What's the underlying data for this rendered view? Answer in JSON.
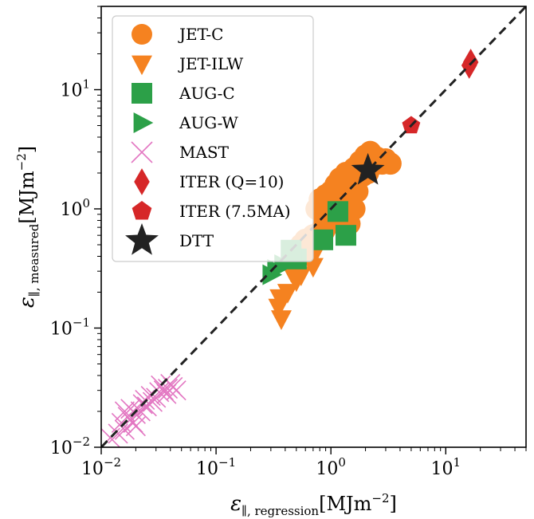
{
  "chart_data": {
    "type": "scatter",
    "xscale": "log",
    "yscale": "log",
    "xlim": [
      0.01,
      50
    ],
    "ylim": [
      0.01,
      50
    ],
    "grid": false,
    "legend_position": "top-left",
    "xlabel": "ε∥, regression[MJm−2]",
    "ylabel": "ε∥, measured[MJm−2]",
    "xlabel_main": "ε",
    "xlabel_sub": "∥, regression",
    "xlabel_unit": "[MJm",
    "xlabel_exp": "−2",
    "xlabel_close": "]",
    "ylabel_main": "ε",
    "ylabel_sub": "∥, measured",
    "ylabel_unit": "[MJm",
    "ylabel_exp": "−2",
    "ylabel_close": "]",
    "x_ticks": [
      {
        "value": 0.01,
        "base": "10",
        "exp": "−2"
      },
      {
        "value": 0.1,
        "base": "10",
        "exp": "−1"
      },
      {
        "value": 1,
        "base": "10",
        "exp": "0"
      },
      {
        "value": 10,
        "base": "10",
        "exp": "1"
      }
    ],
    "y_ticks": [
      {
        "value": 0.01,
        "base": "10",
        "exp": "−2"
      },
      {
        "value": 0.1,
        "base": "10",
        "exp": "−1"
      },
      {
        "value": 1,
        "base": "10",
        "exp": "0"
      },
      {
        "value": 10,
        "base": "10",
        "exp": "1"
      }
    ],
    "reference_line": {
      "style": "dashed",
      "color": "#222222",
      "description": "y = x"
    },
    "series": [
      {
        "name": "JET-C",
        "marker": "circle",
        "color": "#f58220",
        "points": [
          [
            0.75,
            1.0
          ],
          [
            0.8,
            1.2
          ],
          [
            0.85,
            0.9
          ],
          [
            0.9,
            1.3
          ],
          [
            0.95,
            1.1
          ],
          [
            1.0,
            1.4
          ],
          [
            1.05,
            1.0
          ],
          [
            1.1,
            1.6
          ],
          [
            1.15,
            1.2
          ],
          [
            1.2,
            1.8
          ],
          [
            1.3,
            1.5
          ],
          [
            1.35,
            2.0
          ],
          [
            1.4,
            1.1
          ],
          [
            1.5,
            1.7
          ],
          [
            1.6,
            2.2
          ],
          [
            1.7,
            1.4
          ],
          [
            1.8,
            2.5
          ],
          [
            1.9,
            1.9
          ],
          [
            2.0,
            2.8
          ],
          [
            2.1,
            2.0
          ],
          [
            2.2,
            3.0
          ],
          [
            2.3,
            2.3
          ],
          [
            2.5,
            2.7
          ],
          [
            2.8,
            2.4
          ],
          [
            3.0,
            2.6
          ],
          [
            3.3,
            2.4
          ],
          [
            1.25,
            0.85
          ],
          [
            1.45,
            0.75
          ],
          [
            0.7,
            0.6
          ],
          [
            0.65,
            0.45
          ],
          [
            0.6,
            0.55
          ],
          [
            1.1,
            0.8
          ],
          [
            0.55,
            0.5
          ],
          [
            1.6,
            1.0
          ],
          [
            0.85,
            0.7
          ]
        ]
      },
      {
        "name": "JET-ILW",
        "marker": "triangle_down",
        "color": "#f58220",
        "points": [
          [
            0.37,
            0.12
          ],
          [
            0.35,
            0.15
          ],
          [
            0.36,
            0.18
          ],
          [
            0.42,
            0.2
          ],
          [
            0.5,
            0.25
          ],
          [
            0.45,
            0.3
          ],
          [
            0.55,
            0.28
          ],
          [
            0.6,
            0.4
          ],
          [
            0.7,
            0.33
          ],
          [
            0.75,
            0.45
          ],
          [
            0.8,
            0.55
          ],
          [
            0.9,
            0.7
          ],
          [
            1.0,
            0.85
          ],
          [
            0.65,
            0.5
          ],
          [
            0.95,
            0.6
          ]
        ]
      },
      {
        "name": "AUG-C",
        "marker": "square",
        "color": "#2ca048",
        "points": [
          [
            1.15,
            0.95
          ],
          [
            1.35,
            0.6
          ],
          [
            0.85,
            0.55
          ],
          [
            0.5,
            0.38
          ],
          [
            0.45,
            0.45
          ]
        ]
      },
      {
        "name": "AUG-W",
        "marker": "triangle_right",
        "color": "#2ca048",
        "points": [
          [
            0.3,
            0.28
          ],
          [
            0.33,
            0.31
          ],
          [
            0.38,
            0.34
          ]
        ]
      },
      {
        "name": "MAST",
        "marker": "x",
        "color": "#e377c2",
        "points": [
          [
            0.012,
            0.012
          ],
          [
            0.014,
            0.013
          ],
          [
            0.016,
            0.014
          ],
          [
            0.015,
            0.016
          ],
          [
            0.017,
            0.018
          ],
          [
            0.019,
            0.016
          ],
          [
            0.02,
            0.019
          ],
          [
            0.018,
            0.021
          ],
          [
            0.022,
            0.02
          ],
          [
            0.023,
            0.023
          ],
          [
            0.025,
            0.022
          ],
          [
            0.024,
            0.025
          ],
          [
            0.027,
            0.027
          ],
          [
            0.03,
            0.026
          ],
          [
            0.032,
            0.029
          ],
          [
            0.035,
            0.03
          ],
          [
            0.033,
            0.033
          ],
          [
            0.038,
            0.031
          ],
          [
            0.04,
            0.034
          ],
          [
            0.042,
            0.032
          ],
          [
            0.045,
            0.03
          ],
          [
            0.028,
            0.024
          ],
          [
            0.02,
            0.015
          ],
          [
            0.016,
            0.02
          ],
          [
            0.037,
            0.028
          ]
        ]
      },
      {
        "name": "ITER (Q=10)",
        "marker": "diamond",
        "color": "#d62728",
        "points": [
          [
            16.5,
            17.0
          ],
          [
            16.0,
            16.0
          ]
        ]
      },
      {
        "name": "ITER (7.5MA)",
        "marker": "pentagon",
        "color": "#d62728",
        "points": [
          [
            5.0,
            5.0
          ]
        ]
      },
      {
        "name": "DTT",
        "marker": "star",
        "color": "#222222",
        "points": [
          [
            2.1,
            2.1
          ]
        ]
      }
    ],
    "legend": [
      {
        "label": "JET-C",
        "marker": "circle",
        "color": "#f58220"
      },
      {
        "label": "JET-ILW",
        "marker": "triangle_down",
        "color": "#f58220"
      },
      {
        "label": "AUG-C",
        "marker": "square",
        "color": "#2ca048"
      },
      {
        "label": "AUG-W",
        "marker": "triangle_right",
        "color": "#2ca048"
      },
      {
        "label": "MAST",
        "marker": "x",
        "color": "#e377c2"
      },
      {
        "label": "ITER (Q=10)",
        "marker": "diamond",
        "color": "#d62728"
      },
      {
        "label": "ITER (7.5MA)",
        "marker": "pentagon",
        "color": "#d62728"
      },
      {
        "label": "DTT",
        "marker": "star",
        "color": "#222222"
      }
    ]
  }
}
